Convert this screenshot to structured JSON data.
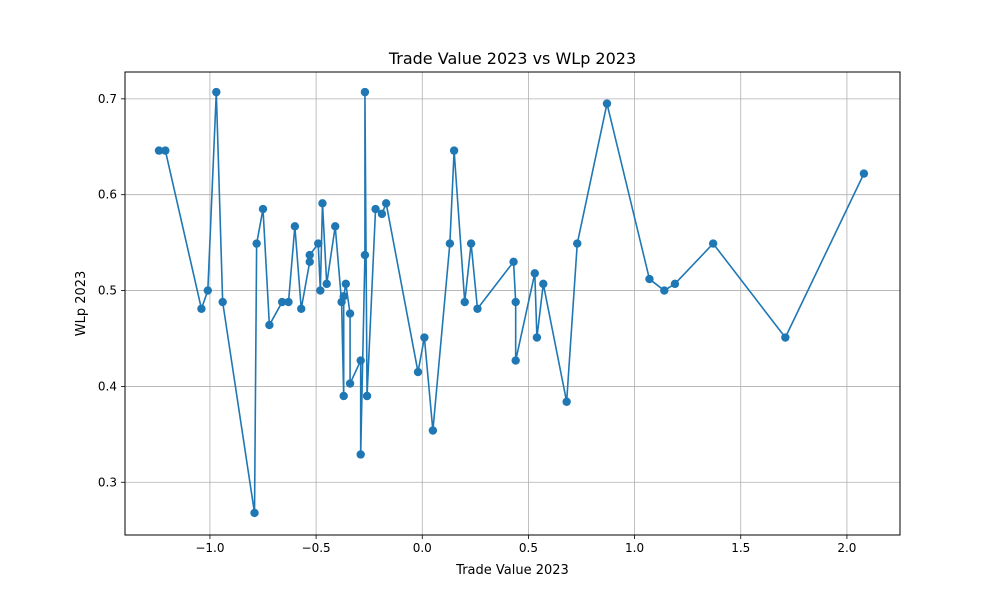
{
  "chart_data": {
    "type": "line",
    "title": "Trade Value 2023 vs WLp 2023",
    "xlabel": "Trade Value 2023",
    "ylabel": "WLp 2023",
    "xlim": [
      -1.4,
      2.25
    ],
    "ylim": [
      0.245,
      0.728
    ],
    "xticks": [
      -1.0,
      -0.5,
      0.0,
      0.5,
      1.0,
      1.5,
      2.0
    ],
    "xtick_labels": [
      "−1.0",
      "−0.5",
      "0.0",
      "0.5",
      "1.0",
      "1.5",
      "2.0"
    ],
    "yticks": [
      0.3,
      0.4,
      0.5,
      0.6,
      0.7
    ],
    "ytick_labels": [
      "0.3",
      "0.4",
      "0.5",
      "0.6",
      "0.7"
    ],
    "grid": true,
    "marker": "circle",
    "color": "#1f77b4",
    "series": [
      {
        "x": [
          -1.24,
          -1.21,
          -1.04,
          -1.01,
          -0.97,
          -0.94,
          -0.79,
          -0.78,
          -0.75,
          -0.72,
          -0.66,
          -0.63,
          -0.6,
          -0.57,
          -0.53,
          -0.53,
          -0.49,
          -0.48,
          -0.47,
          -0.45,
          -0.41,
          -0.38,
          -0.37,
          -0.37,
          -0.36,
          -0.34,
          -0.34,
          -0.29,
          -0.29,
          -0.27,
          -0.27,
          -0.26,
          -0.22,
          -0.19,
          -0.17,
          -0.02,
          0.01,
          0.05,
          0.13,
          0.15,
          0.2,
          0.23,
          0.26,
          0.43,
          0.44,
          0.44,
          0.53,
          0.54,
          0.57,
          0.68,
          0.73,
          0.87,
          1.07,
          1.14,
          1.19,
          1.37,
          1.71,
          2.08
        ],
        "y": [
          0.646,
          0.646,
          0.481,
          0.5,
          0.707,
          0.488,
          0.268,
          0.549,
          0.585,
          0.464,
          0.488,
          0.488,
          0.567,
          0.481,
          0.53,
          0.537,
          0.549,
          0.5,
          0.591,
          0.507,
          0.567,
          0.488,
          0.39,
          0.494,
          0.507,
          0.476,
          0.403,
          0.427,
          0.329,
          0.537,
          0.707,
          0.39,
          0.585,
          0.58,
          0.591,
          0.415,
          0.451,
          0.354,
          0.549,
          0.646,
          0.488,
          0.549,
          0.481,
          0.53,
          0.488,
          0.427,
          0.518,
          0.451,
          0.507,
          0.384,
          0.549,
          0.695,
          0.512,
          0.5,
          0.507,
          0.549,
          0.451,
          0.622
        ]
      }
    ]
  }
}
